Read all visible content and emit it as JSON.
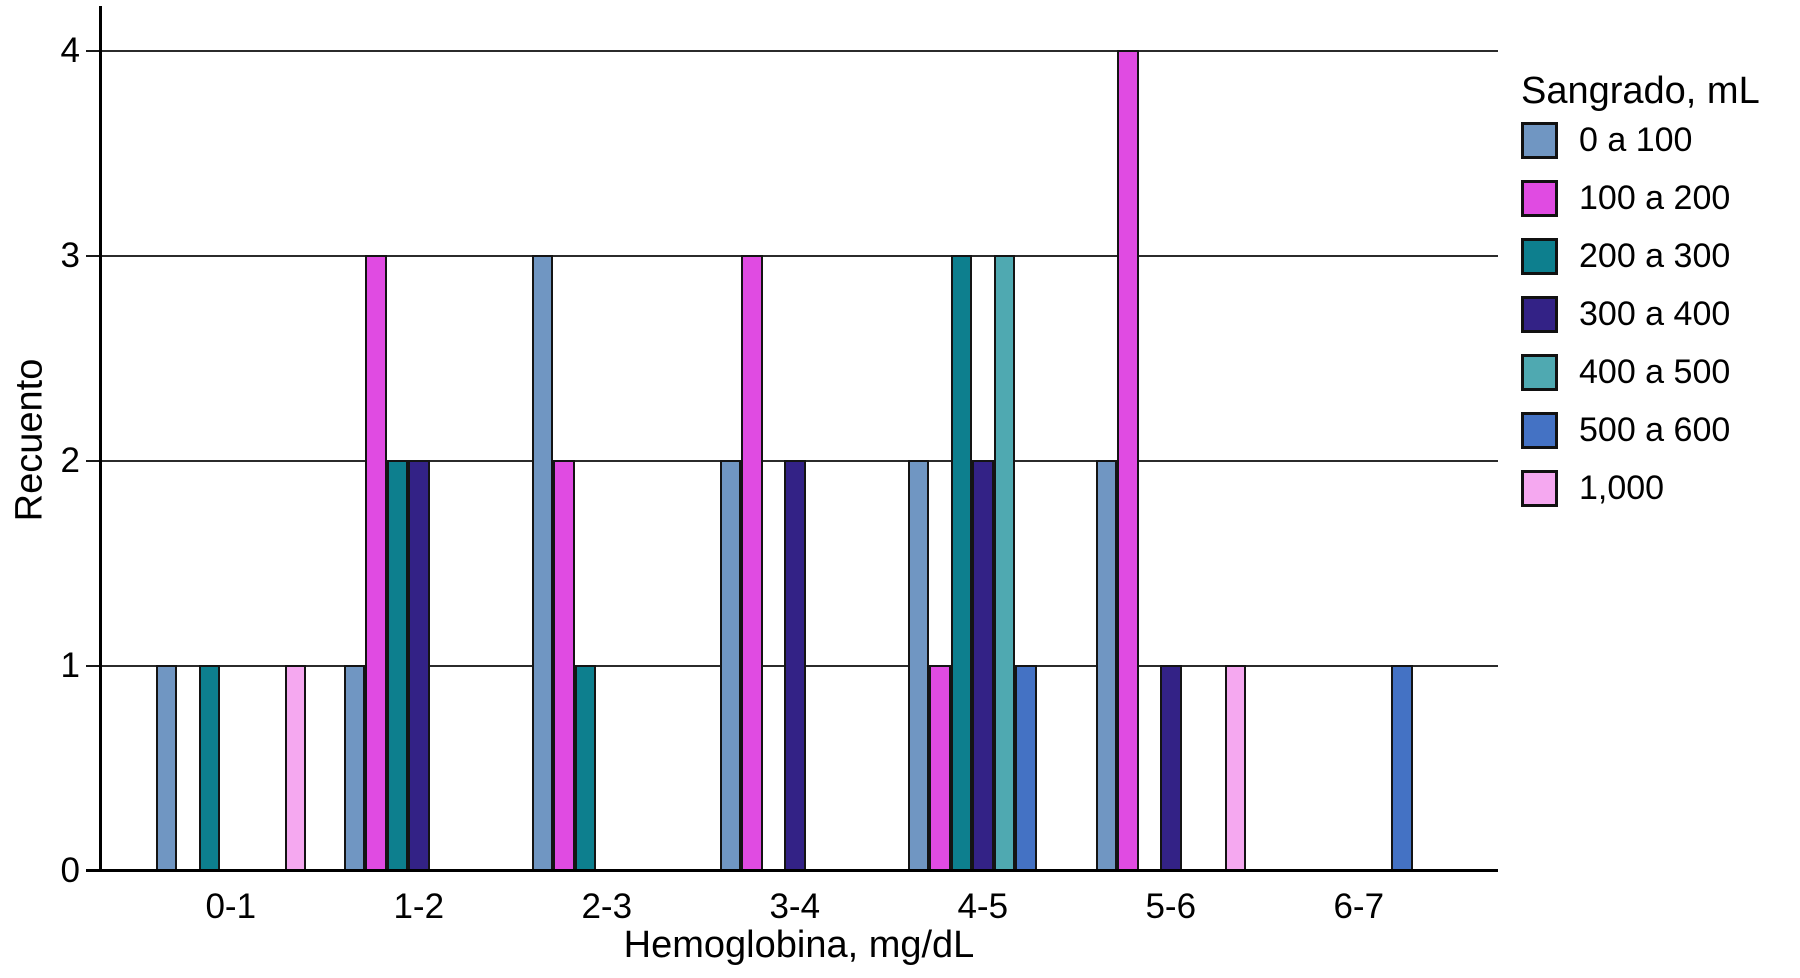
{
  "chart_data": {
    "type": "bar",
    "title": "",
    "xlabel": "Hemoglobina, mg/dL",
    "ylabel": "Recuento",
    "legend_title": "Sangrado, mL",
    "legend_position": "right",
    "grid": true,
    "ylim": [
      0,
      4
    ],
    "y_ticks": [
      0,
      1,
      2,
      3,
      4
    ],
    "categories": [
      "0-1",
      "1-2",
      "2-3",
      "3-4",
      "4-5",
      "5-6",
      "6-7"
    ],
    "series": [
      {
        "name": "0 a 100",
        "color": "#7096C2",
        "values": [
          1,
          1,
          3,
          2,
          2,
          2,
          0
        ]
      },
      {
        "name": "100 a 200",
        "color": "#E04BE2",
        "values": [
          0,
          3,
          2,
          3,
          1,
          4,
          0
        ]
      },
      {
        "name": "200 a 300",
        "color": "#0D7F8E",
        "values": [
          1,
          2,
          1,
          0,
          3,
          0,
          0
        ]
      },
      {
        "name": "300 a 400",
        "color": "#332286",
        "values": [
          0,
          2,
          0,
          2,
          2,
          1,
          0
        ]
      },
      {
        "name": "400 a 500",
        "color": "#4FA9B1",
        "values": [
          0,
          0,
          0,
          0,
          3,
          0,
          0
        ]
      },
      {
        "name": "500 a 600",
        "color": "#4472C4",
        "values": [
          0,
          0,
          0,
          0,
          1,
          0,
          1
        ]
      },
      {
        "name": "1,000",
        "color": "#F5A8F0",
        "values": [
          1,
          0,
          0,
          0,
          0,
          1,
          0
        ]
      }
    ],
    "colors": {
      "gridline": "#2B2B2B",
      "axis": "#000000",
      "bar_border": "#141414",
      "text": "#000000",
      "background": "#FFFFFF"
    }
  }
}
